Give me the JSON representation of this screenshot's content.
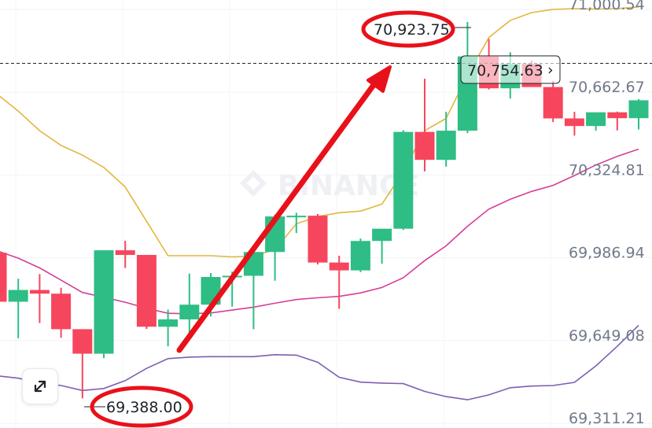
{
  "watermark": {
    "text": "BINANCE"
  },
  "price_tag": {
    "value": "70,754.63",
    "chevron": "›"
  },
  "annotations": {
    "high_value": "70,923.75",
    "low_value": "69,388.00",
    "arrow_color": "#e8111a",
    "circle_color": "#e8111a"
  },
  "icons": {
    "expand": "expand-arrows-icon"
  },
  "colors": {
    "up": "#2ebd85",
    "down": "#f6465d",
    "boll_upper": "#e2b63c",
    "boll_mid": "#d63e98",
    "boll_lower": "#7b5fb1"
  },
  "chart_data": {
    "type": "candlestick",
    "title": "",
    "xlabel": "",
    "ylabel": "",
    "y_tick_labels": [
      "71,000.54",
      "70,662.67",
      "70,324.81",
      "69,986.94",
      "69,649.08",
      "69,311.21"
    ],
    "ylim": [
      69270,
      71010
    ],
    "grid": true,
    "current_price": 70754.63,
    "series": [
      {
        "candles": [
          {
            "o": 69982,
            "h": 69982,
            "l": 69781,
            "c": 69782
          },
          {
            "o": 69782,
            "h": 69876,
            "l": 69633,
            "c": 69830
          },
          {
            "o": 69830,
            "h": 69895,
            "l": 69695,
            "c": 69815
          },
          {
            "o": 69815,
            "h": 69839,
            "l": 69635,
            "c": 69670
          },
          {
            "o": 69670,
            "h": 69670,
            "l": 69388,
            "c": 69570
          },
          {
            "o": 69570,
            "h": 69992,
            "l": 69552,
            "c": 69992
          },
          {
            "o": 69992,
            "h": 70031,
            "l": 69920,
            "c": 69973
          },
          {
            "o": 69973,
            "h": 69973,
            "l": 69671,
            "c": 69680
          },
          {
            "o": 69680,
            "h": 69750,
            "l": 69600,
            "c": 69710
          },
          {
            "o": 69710,
            "h": 69897,
            "l": 69649,
            "c": 69770
          },
          {
            "o": 69770,
            "h": 69899,
            "l": 69722,
            "c": 69883
          },
          {
            "o": 69883,
            "h": 69905,
            "l": 69762,
            "c": 69888
          },
          {
            "o": 69888,
            "h": 70013,
            "l": 69670,
            "c": 69985
          },
          {
            "o": 69985,
            "h": 70138,
            "l": 69868,
            "c": 70130
          },
          {
            "o": 70130,
            "h": 70145,
            "l": 70062,
            "c": 70133
          },
          {
            "o": 70133,
            "h": 70140,
            "l": 69934,
            "c": 69942
          },
          {
            "o": 69942,
            "h": 69970,
            "l": 69753,
            "c": 69910
          },
          {
            "o": 69910,
            "h": 70040,
            "l": 69903,
            "c": 70030
          },
          {
            "o": 70030,
            "h": 70070,
            "l": 69937,
            "c": 70080
          },
          {
            "o": 70080,
            "h": 70482,
            "l": 70075,
            "c": 70475
          },
          {
            "o": 70475,
            "h": 70692,
            "l": 70314,
            "c": 70361
          },
          {
            "o": 70361,
            "h": 70557,
            "l": 70333,
            "c": 70480
          },
          {
            "o": 70480,
            "h": 70923.75,
            "l": 70470,
            "c": 70783
          },
          {
            "o": 70783,
            "h": 70854,
            "l": 70648,
            "c": 70653
          },
          {
            "o": 70653,
            "h": 70800,
            "l": 70611,
            "c": 70752
          },
          {
            "o": 70752,
            "h": 70765,
            "l": 70667,
            "c": 70658
          },
          {
            "o": 70658,
            "h": 70683,
            "l": 70515,
            "c": 70530
          },
          {
            "o": 70530,
            "h": 70557,
            "l": 70460,
            "c": 70499
          },
          {
            "o": 70499,
            "h": 70542,
            "l": 70480,
            "c": 70555
          },
          {
            "o": 70555,
            "h": 70558,
            "l": 70481,
            "c": 70531
          },
          {
            "o": 70531,
            "h": 70609,
            "l": 70485,
            "c": 70604
          }
        ]
      },
      {
        "values": [
          70630,
          70560,
          70480,
          70420,
          70380,
          70330,
          70250,
          70110,
          69970,
          69970,
          69970,
          69965,
          69968,
          69995,
          70100,
          70130,
          70145,
          70152,
          70180,
          70312,
          70480,
          70530,
          70705,
          70860,
          70930,
          70962,
          70975,
          70978,
          70976,
          70978,
          70985
        ]
      },
      {
        "values": [
          69990,
          69960,
          69920,
          69870,
          69820,
          69800,
          69780,
          69755,
          69735,
          69733,
          69736,
          69748,
          69760,
          69776,
          69791,
          69798,
          69804,
          69818,
          69840,
          69880,
          69950,
          70010,
          70090,
          70160,
          70200,
          70232,
          70257,
          70297,
          70340,
          70375,
          70405
        ]
      },
      {
        "values": [
          69480,
          69470,
          69450,
          69440,
          69420,
          69428,
          69460,
          69510,
          69550,
          69556,
          69558,
          69558,
          69558,
          69566,
          69564,
          69535,
          69474,
          69454,
          69450,
          69448,
          69416,
          69395,
          69382,
          69402,
          69431,
          69438,
          69440,
          69453,
          69520,
          69600,
          69686
        ]
      }
    ]
  }
}
